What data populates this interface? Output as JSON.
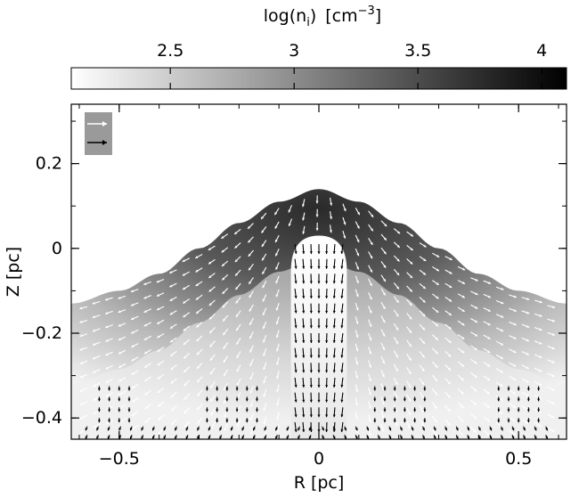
{
  "chart_data": {
    "type": "heatmap",
    "title": "",
    "colorbar": {
      "label": "log(n_i) [cm^-3]",
      "label_main": "log(n",
      "label_sub": "i",
      "label_close": ")",
      "label_units": "[cm",
      "label_units_exp": "−3",
      "label_units_close": "]",
      "range": [
        2.1,
        4.1
      ],
      "ticks": [
        2.5,
        3,
        3.5,
        4
      ],
      "tick_labels": [
        "2.5",
        "3",
        "3.5",
        "4"
      ],
      "colormap": "white-to-black",
      "color_low": "#ffffff",
      "color_high": "#000000"
    },
    "xlabel": "R [pc]",
    "ylabel": "Z [pc]",
    "xlim": [
      -0.62,
      0.62
    ],
    "ylim": [
      -0.45,
      0.34
    ],
    "xticks": [
      -0.5,
      0,
      0.5
    ],
    "xtick_labels": [
      "−0.5",
      "0",
      "0.5"
    ],
    "yticks": [
      -0.4,
      -0.2,
      0,
      0.2
    ],
    "ytick_labels": [
      "−0.4",
      "−0.2",
      "0",
      "0.2"
    ],
    "grid": false,
    "legend": {
      "placement": "top-left",
      "entries": [
        {
          "color": "#ffffff"
        },
        {
          "color": "#000000"
        }
      ]
    },
    "density_field": {
      "cloud_surface": {
        "description_values_only": true,
        "r": [
          -0.62,
          -0.5,
          -0.4,
          -0.3,
          -0.2,
          -0.1,
          0,
          0.1,
          0.2,
          0.3,
          0.4,
          0.5,
          0.62
        ],
        "z_top": [
          -0.13,
          -0.1,
          -0.06,
          0.0,
          0.06,
          0.11,
          0.14,
          0.11,
          0.06,
          0.0,
          -0.06,
          -0.1,
          -0.13
        ]
      },
      "log_n_peak": 3.9,
      "log_n_cloud_base": 2.6,
      "log_n_background": 2.1
    },
    "cavity": {
      "r_halfwidth": 0.07,
      "z_top": 0.03,
      "z_bottom": -0.45
    },
    "vectors": {
      "flow_white": "ionized gas flows outward from cloud surface",
      "flow_black": "photo-evaporated gas moving down the central cavity",
      "white_color": "#ffffff",
      "black_color": "#000000"
    }
  }
}
